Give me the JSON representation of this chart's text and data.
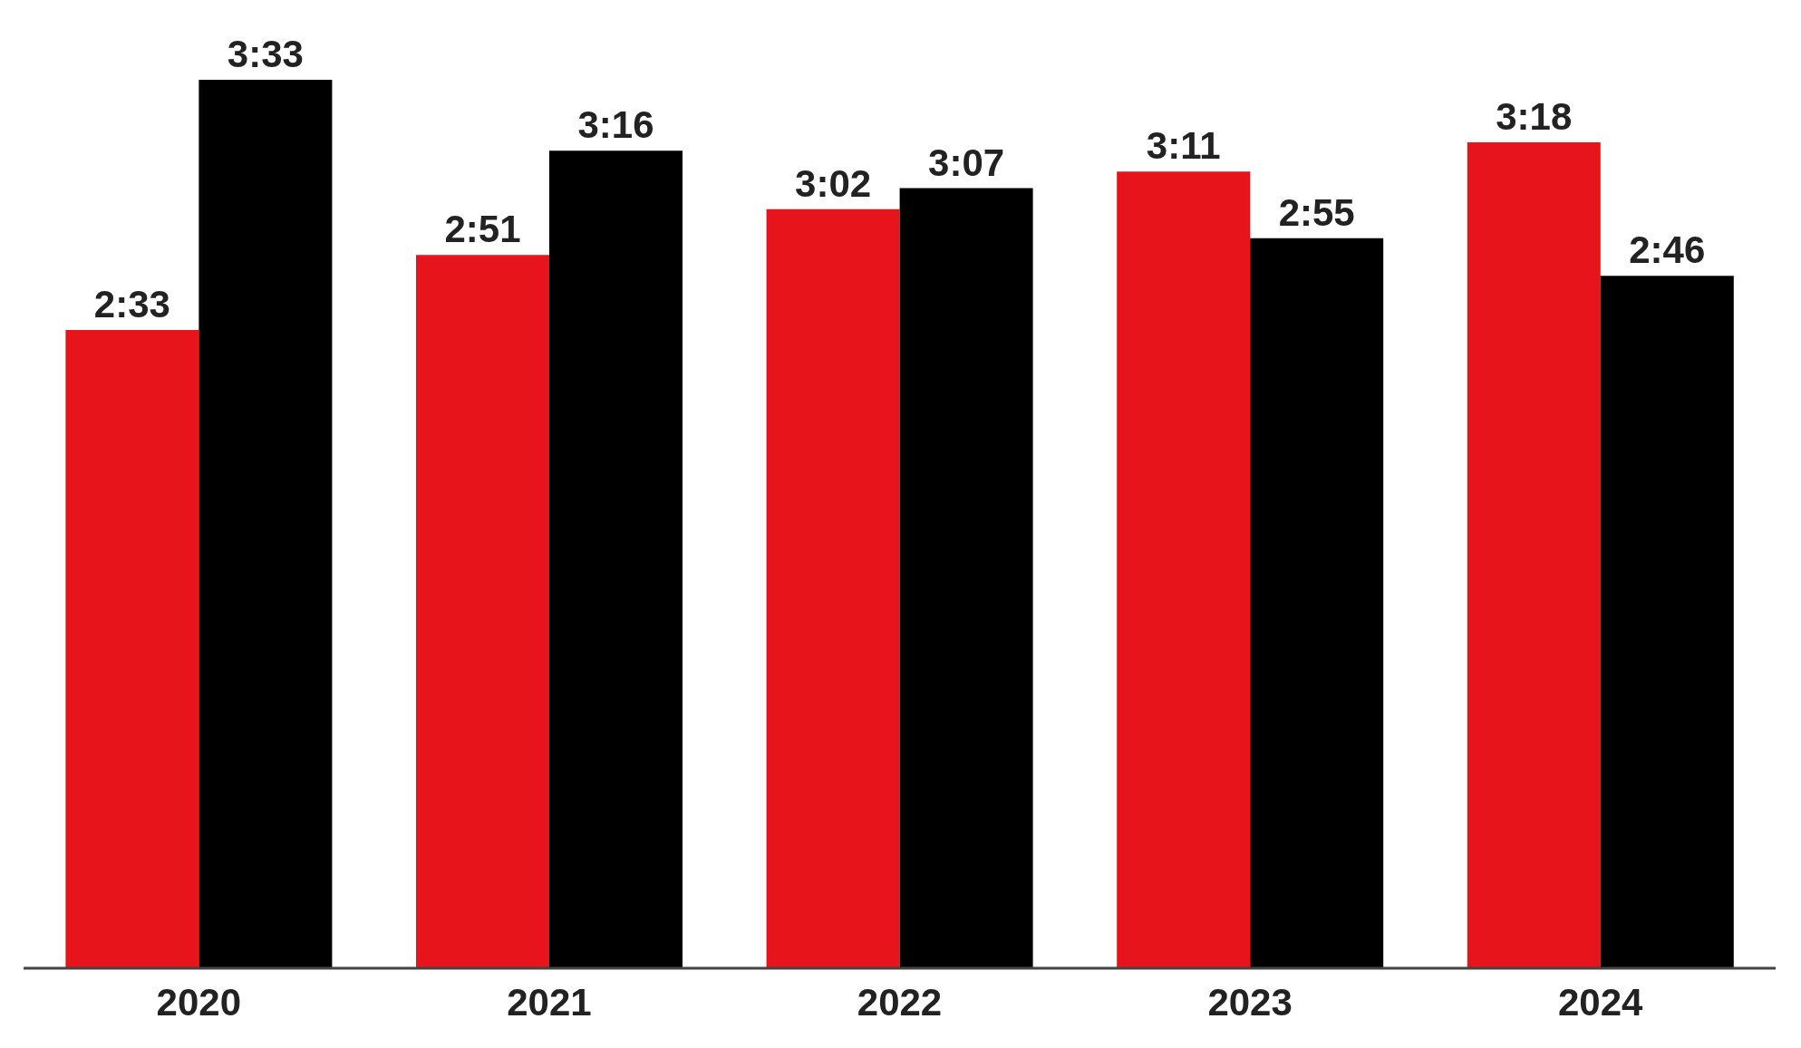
{
  "chart_data": {
    "type": "bar",
    "categories": [
      "2020",
      "2021",
      "2022",
      "2023",
      "2024"
    ],
    "series": [
      {
        "color": "#e8141c",
        "values": [
          153,
          171,
          182,
          191,
          198
        ],
        "value_labels": [
          "2:33",
          "2:51",
          "3:02",
          "3:11",
          "3:18"
        ]
      },
      {
        "color": "#000000",
        "values": [
          213,
          196,
          187,
          175,
          166
        ],
        "value_labels": [
          "3:33",
          "3:16",
          "3:07",
          "2:55",
          "2:46"
        ]
      }
    ],
    "grid": false,
    "legend": false
  }
}
